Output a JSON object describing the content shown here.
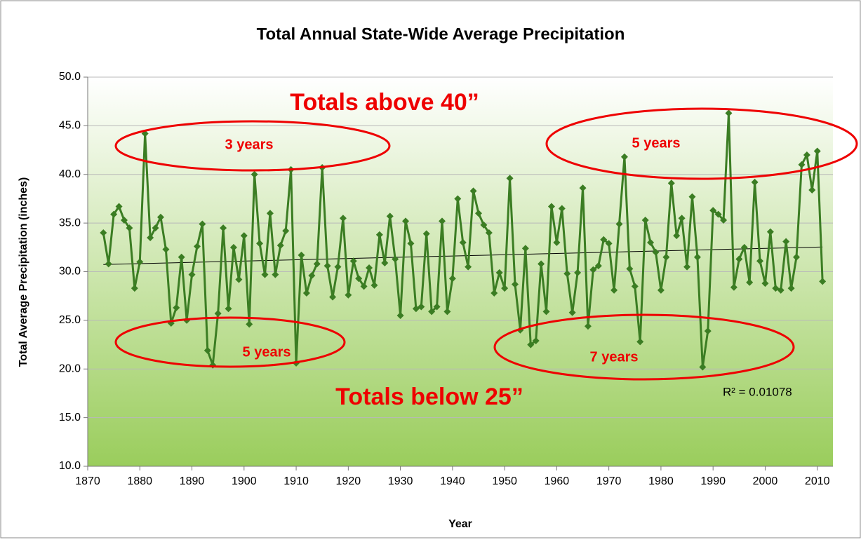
{
  "chart_data": {
    "type": "line",
    "title": "Total Annual State-Wide Average Precipitation",
    "x_label": "Year",
    "y_label": "Total Average Precipitation (inches)",
    "x": [
      1873,
      1874,
      1875,
      1876,
      1877,
      1878,
      1879,
      1880,
      1881,
      1882,
      1883,
      1884,
      1885,
      1886,
      1887,
      1888,
      1889,
      1890,
      1891,
      1892,
      1893,
      1894,
      1895,
      1896,
      1897,
      1898,
      1899,
      1900,
      1901,
      1902,
      1903,
      1904,
      1905,
      1906,
      1907,
      1908,
      1909,
      1910,
      1911,
      1912,
      1913,
      1914,
      1915,
      1916,
      1917,
      1918,
      1919,
      1920,
      1921,
      1922,
      1923,
      1924,
      1925,
      1926,
      1927,
      1928,
      1929,
      1930,
      1931,
      1932,
      1933,
      1934,
      1935,
      1936,
      1937,
      1938,
      1939,
      1940,
      1941,
      1942,
      1943,
      1944,
      1945,
      1946,
      1947,
      1948,
      1949,
      1950,
      1951,
      1952,
      1953,
      1954,
      1955,
      1956,
      1957,
      1958,
      1959,
      1960,
      1961,
      1962,
      1963,
      1964,
      1965,
      1966,
      1967,
      1968,
      1969,
      1970,
      1971,
      1972,
      1973,
      1974,
      1975,
      1976,
      1977,
      1978,
      1979,
      1980,
      1981,
      1982,
      1983,
      1984,
      1985,
      1986,
      1987,
      1988,
      1989,
      1990,
      1991,
      1992,
      1993,
      1994,
      1995,
      1996,
      1997,
      1998,
      1999,
      2000,
      2001,
      2002,
      2003,
      2004,
      2005,
      2006,
      2007,
      2008,
      2009,
      2010,
      2011
    ],
    "series": [
      {
        "color": "#3b7d23",
        "values": [
          34.0,
          30.8,
          35.9,
          36.7,
          35.3,
          34.5,
          28.3,
          31.0,
          44.2,
          33.5,
          34.5,
          35.6,
          32.3,
          24.7,
          26.3,
          31.5,
          25.0,
          29.7,
          32.6,
          34.9,
          21.9,
          20.4,
          25.7,
          34.5,
          26.2,
          32.5,
          29.2,
          33.7,
          24.6,
          40.0,
          32.9,
          29.7,
          36.0,
          29.7,
          32.7,
          34.2,
          40.5,
          20.6,
          31.7,
          27.8,
          29.6,
          30.8,
          40.7,
          30.6,
          27.4,
          30.5,
          35.5,
          27.6,
          31.1,
          29.3,
          28.5,
          30.4,
          28.6,
          33.8,
          30.9,
          35.7,
          31.3,
          25.5,
          35.2,
          32.9,
          26.2,
          26.4,
          33.9,
          25.9,
          26.4,
          35.2,
          25.9,
          29.3,
          37.5,
          33.0,
          30.5,
          38.3,
          36.0,
          34.8,
          34.0,
          27.8,
          29.9,
          28.3,
          39.6,
          28.7,
          24.0,
          32.4,
          22.5,
          22.9,
          30.8,
          25.9,
          36.7,
          33.0,
          36.5,
          29.8,
          25.8,
          29.9,
          38.6,
          24.4,
          30.2,
          30.6,
          33.3,
          32.9,
          28.1,
          34.9,
          41.8,
          30.3,
          28.5,
          22.8,
          35.3,
          33.0,
          32.0,
          28.1,
          31.5,
          39.1,
          33.7,
          35.5,
          30.5,
          37.7,
          31.5,
          20.2,
          23.9,
          36.3,
          35.9,
          35.3,
          46.3,
          28.4,
          31.3,
          32.5,
          28.9,
          39.2,
          31.1,
          28.8,
          34.1,
          28.3,
          28.1,
          33.1,
          28.3,
          31.5,
          41.0,
          42.0,
          38.4,
          42.4,
          29.0
        ]
      }
    ],
    "trendline": true,
    "r_squared_label": "R² = 0.01078",
    "annotations": [
      "Totals above 40”",
      "Totals below 25”",
      "3 years",
      "5 years",
      "5 years",
      "7 years"
    ],
    "xlim": [
      1870,
      2013
    ],
    "xticks": [
      1870,
      1880,
      1890,
      1900,
      1910,
      1920,
      1930,
      1940,
      1950,
      1960,
      1970,
      1980,
      1990,
      2000,
      2010
    ],
    "ylim": [
      10,
      50
    ],
    "yticks": [
      {
        "value": 10,
        "label": "10.0"
      },
      {
        "value": 15,
        "label": "15.0"
      },
      {
        "value": 20,
        "label": "20.0"
      },
      {
        "value": 25,
        "label": "25.0"
      },
      {
        "value": 30,
        "label": "30.0"
      },
      {
        "value": 35,
        "label": "35.0"
      },
      {
        "value": 40,
        "label": "40.0"
      },
      {
        "value": 45,
        "label": "45.0"
      },
      {
        "value": 50,
        "label": "50.0"
      }
    ],
    "grid": true
  }
}
